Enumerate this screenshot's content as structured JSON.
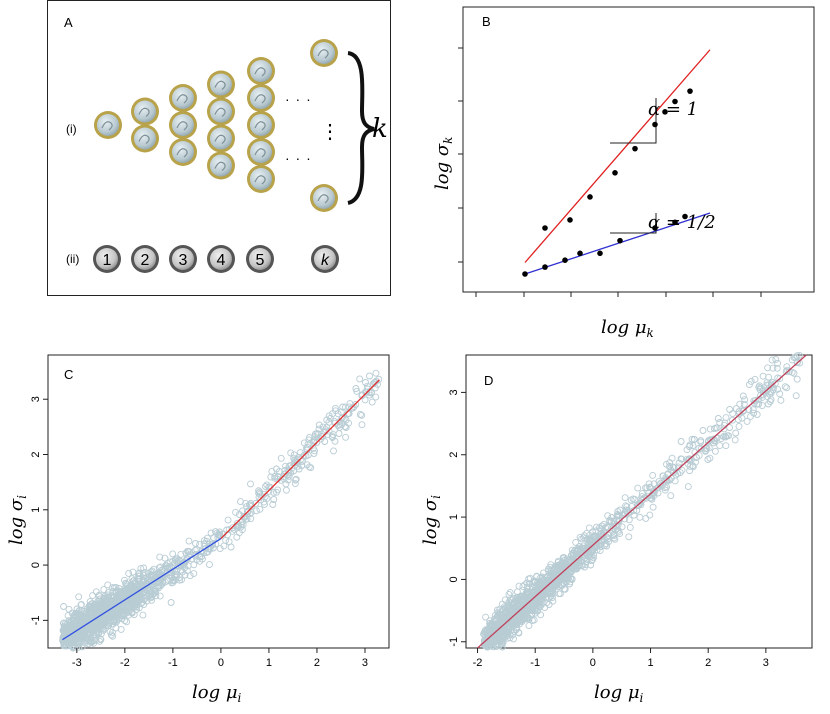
{
  "panel_a": {
    "label": "A",
    "row_i_label": "(i)",
    "row_ii_label": "(ii)",
    "k_label": "k",
    "ellipsis_h": "· · ·",
    "ellipsis_v": "⋮",
    "coin_counts": [
      1,
      2,
      3,
      4,
      5
    ],
    "numbered_coins": [
      "1",
      "2",
      "3",
      "4",
      "5",
      "k"
    ],
    "coin_colors": {
      "rim": "#b8a24a",
      "face": "#c9d6dc",
      "number_coin": "#9a9a9a"
    }
  },
  "chart_data": [
    {
      "panel": "B",
      "type": "scatter",
      "title": "",
      "xlabel": "log μ_k",
      "ylabel": "log σ_k",
      "series": [
        {
          "name": "α = 1",
          "color": "#e02020",
          "points": [
            [
              0.4,
              0.3
            ],
            [
              0.9,
              0.37
            ],
            [
              1.3,
              0.57
            ],
            [
              1.8,
              0.78
            ],
            [
              2.2,
              0.99
            ],
            [
              2.6,
              1.2
            ],
            [
              2.8,
              1.31
            ],
            [
              3.0,
              1.4
            ],
            [
              3.3,
              1.49
            ]
          ],
          "fit": [
            [
              0.0,
              0.0
            ],
            [
              3.7,
              1.85
            ]
          ]
        },
        {
          "name": "α = 1/2",
          "color": "#3030d0",
          "points": [
            [
              0.0,
              -0.1
            ],
            [
              0.4,
              -0.04
            ],
            [
              0.8,
              0.02
            ],
            [
              1.1,
              0.08
            ],
            [
              1.5,
              0.08
            ],
            [
              1.9,
              0.19
            ],
            [
              2.6,
              0.3
            ],
            [
              3.0,
              0.35
            ],
            [
              3.2,
              0.4
            ]
          ],
          "fit": [
            [
              0.0,
              -0.1
            ],
            [
              3.7,
              0.43
            ]
          ]
        }
      ],
      "annotations": [
        "α = 1",
        "α = 1/2"
      ]
    },
    {
      "panel": "C",
      "type": "scatter",
      "title": "",
      "xlabel": "log μ_i",
      "ylabel": "log σ_i",
      "xticks": [
        "-3",
        "-2",
        "-1",
        "0",
        "1",
        "2",
        "3"
      ],
      "yticks": [
        "-1",
        "0",
        "1",
        "2",
        "3"
      ],
      "xlim": [
        -3.6,
        3.5
      ],
      "ylim": [
        -1.5,
        3.8
      ],
      "points_color": "#b8ccd4",
      "fit_segments": [
        {
          "color": "#3050e0",
          "from": [
            -3.3,
            -1.35
          ],
          "to": [
            0.0,
            0.48
          ]
        },
        {
          "color": "#e03030",
          "from": [
            0.0,
            0.48
          ],
          "to": [
            3.3,
            3.35
          ]
        }
      ]
    },
    {
      "panel": "D",
      "type": "scatter",
      "title": "",
      "xlabel": "log μ_i",
      "ylabel": "log σ_i",
      "xticks": [
        "-2",
        "-1",
        "0",
        "1",
        "2",
        "3"
      ],
      "yticks": [
        "-1",
        "0",
        "1",
        "2",
        "3"
      ],
      "xlim": [
        -2.2,
        3.8
      ],
      "ylim": [
        -1.1,
        3.6
      ],
      "points_color": "#b8ccd4",
      "fit_segments": [
        {
          "color": "#c0405a",
          "from": [
            -2.0,
            -1.1
          ],
          "to": [
            3.7,
            3.6
          ]
        }
      ]
    }
  ],
  "panel_labels": {
    "b": "B",
    "c": "C",
    "d": "D"
  },
  "axis_labels": {
    "b_x": "log μ",
    "b_x_sub": "k",
    "b_y": "log σ",
    "b_y_sub": "k",
    "c_x": "log μ",
    "c_x_sub": "i",
    "c_y": "log σ",
    "c_y_sub": "i",
    "d_x": "log μ",
    "d_x_sub": "i",
    "d_y": "log σ",
    "d_y_sub": "i"
  },
  "annotation_text": {
    "alpha1": "α = 1",
    "alpha_half": "α = 1/2"
  }
}
